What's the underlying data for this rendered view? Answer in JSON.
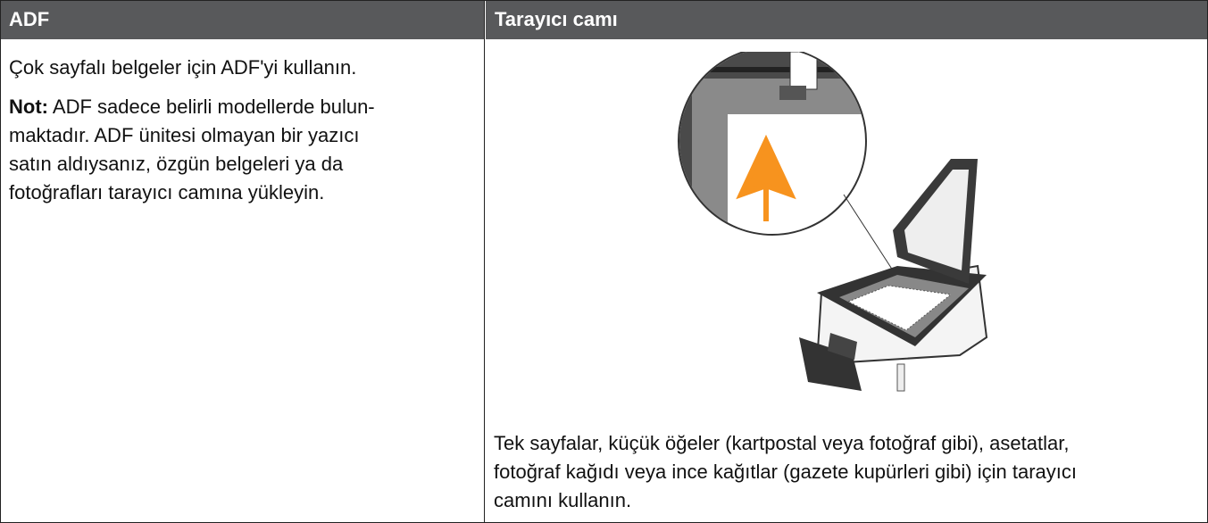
{
  "table": {
    "headers": [
      "ADF",
      "Tarayıcı camı"
    ],
    "left": {
      "intro": "Çok sayfalı belgeler için ADF'yi kullanın.",
      "note_label": "Not:",
      "note_lines": [
        "ADF sadece belirli modellerde bulun-",
        "maktadır. ADF ünitesi olmayan bir yazıcı",
        "satın aldıysanız, özgün belgeleri ya da",
        "fotoğrafları tarayıcı camına yükleyin."
      ]
    },
    "right": {
      "caption_lines": [
        "Tek sayfalar, küçük öğeler (kartpostal veya fotoğraf gibi), asetatlar,",
        "fotoğraf kağıdı veya ince kağıtlar (gazete kupürleri gibi) için tarayıcı",
        "camını kullanın."
      ]
    }
  }
}
